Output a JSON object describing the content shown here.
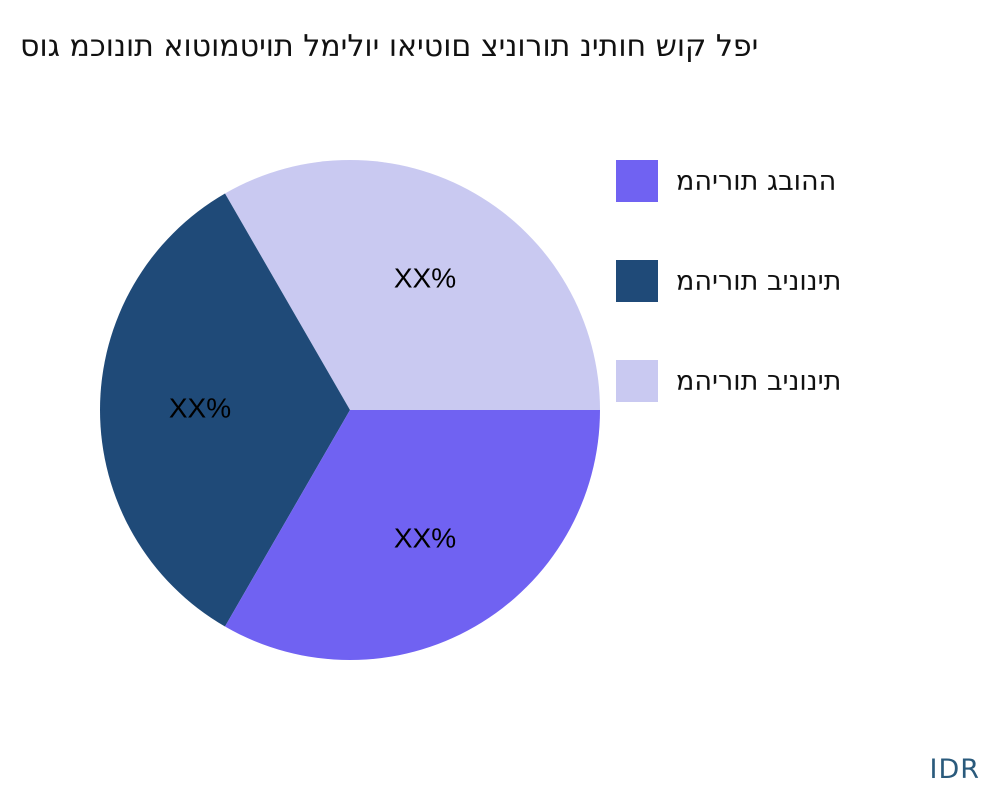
{
  "chart_data": {
    "type": "pie",
    "title": "יפל קוש חותינ תורוניצ םוטיאו יולימל תויטמוטוא תונוכמ גוס",
    "categories": [
      "ההובג תוריהמ",
      "תינוניב תוריהמ",
      "תינוניב תוריהמ"
    ],
    "values": [
      33.3,
      33.3,
      33.3
    ],
    "data_labels": [
      "XX%",
      "XX%",
      "XX%"
    ],
    "colors": [
      "#7062f2",
      "#1f4a78",
      "#c9c9f1"
    ],
    "start_angle_deg": 90,
    "direction": "clockwise",
    "legend_position": "right"
  },
  "source": "IDR"
}
